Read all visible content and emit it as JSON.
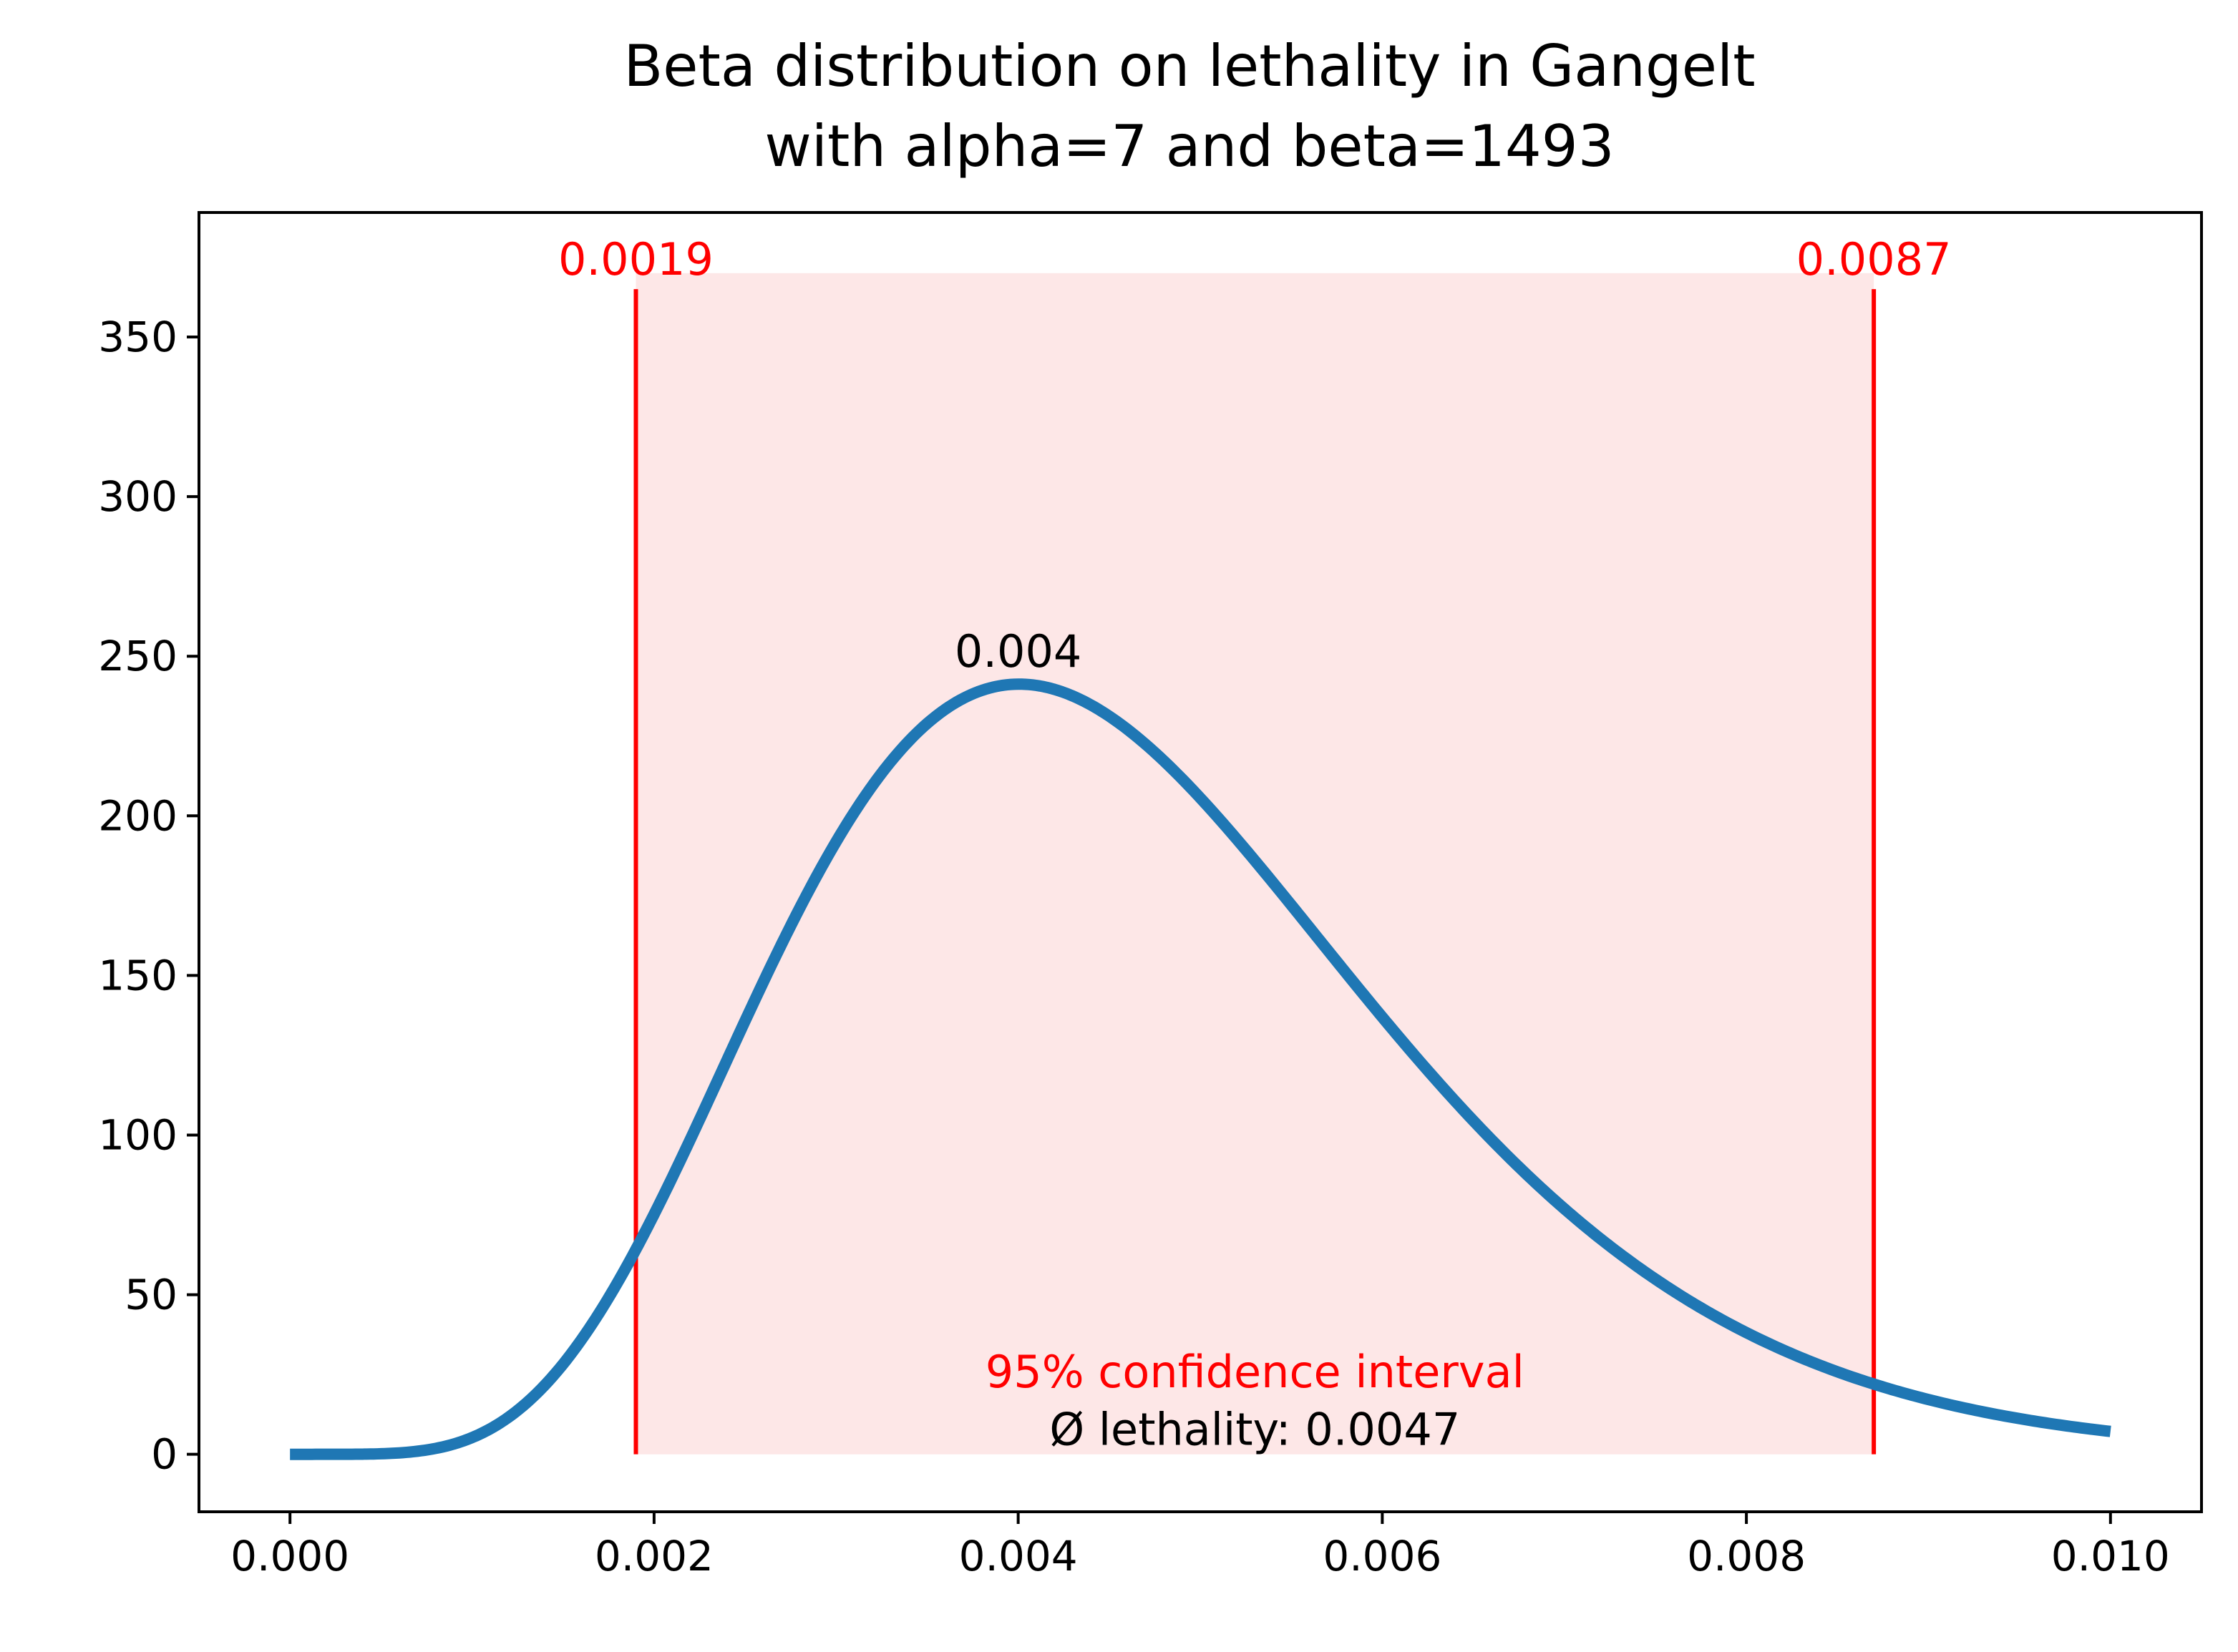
{
  "chart_data": {
    "type": "line",
    "title": [
      "Beta distribution on lethality in Gangelt",
      "with alpha=7 and beta=1493"
    ],
    "xlabel": "",
    "ylabel": "",
    "distribution": {
      "name": "beta",
      "alpha": 7,
      "beta": 1493
    },
    "xlim": [
      -0.0005,
      0.0105
    ],
    "ylim": [
      -18,
      389
    ],
    "x_ticks": [
      0.0,
      0.002,
      0.004,
      0.006,
      0.008,
      0.01
    ],
    "x_tick_labels": [
      "0.000",
      "0.002",
      "0.004",
      "0.006",
      "0.008",
      "0.010"
    ],
    "y_ticks": [
      0,
      50,
      100,
      150,
      200,
      250,
      300,
      350
    ],
    "y_tick_labels": [
      "0",
      "50",
      "100",
      "150",
      "200",
      "250",
      "300",
      "350"
    ],
    "series": [
      {
        "name": "Beta pdf",
        "color": "#1f77b4",
        "x_range": [
          0.0,
          0.01
        ]
      }
    ],
    "confidence_interval": {
      "lower": 0.0019,
      "upper": 0.0087,
      "lower_label": "0.0019",
      "upper_label": "0.0087",
      "label": "95% confidence interval",
      "fill_color": "#fde7e7",
      "line_color": "#ff0000",
      "fill_top": 370,
      "line_top": 365
    },
    "mode": {
      "x": 0.004,
      "label": "0.004"
    },
    "mean_label": "Ø lethality: 0.0047",
    "grid": false
  }
}
